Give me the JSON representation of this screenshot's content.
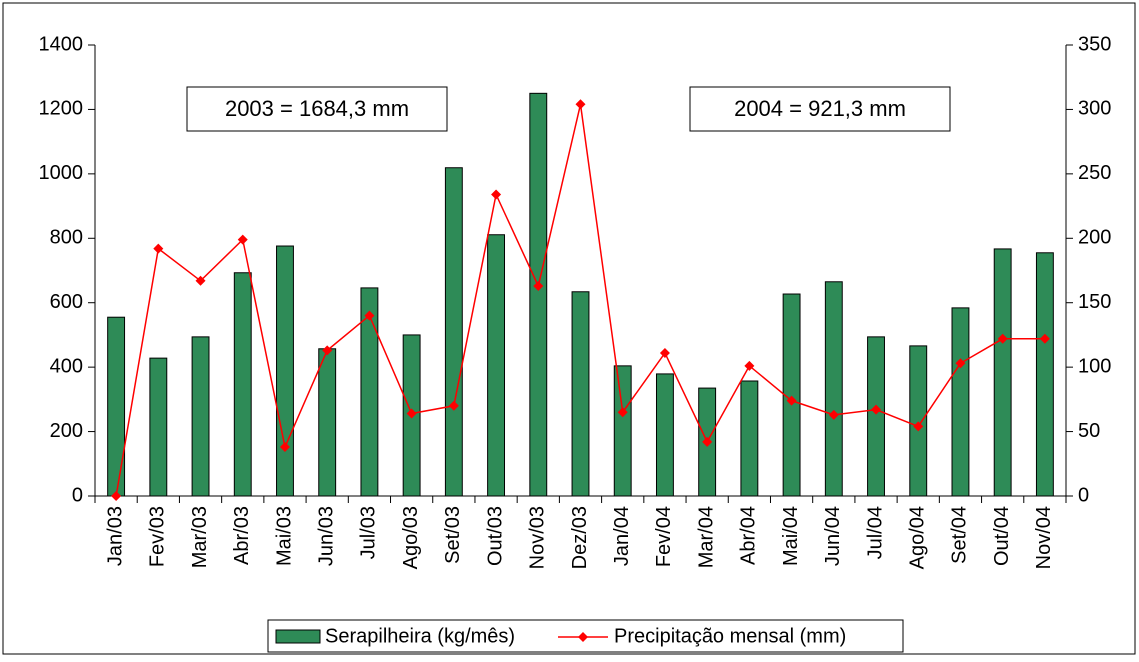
{
  "chart_data": {
    "type": "bar",
    "categories": [
      "Jan/03",
      "Fev/03",
      "Mar/03",
      "Abr/03",
      "Mai/03",
      "Jun/03",
      "Jul/03",
      "Ago/03",
      "Set/03",
      "Out/03",
      "Nov/03",
      "Dez/03",
      "Jan/04",
      "Fev/04",
      "Mar/04",
      "Abr/04",
      "Mai/04",
      "Jun/04",
      "Jul/04",
      "Ago/04",
      "Set/04",
      "Out/04",
      "Nov/04"
    ],
    "series": [
      {
        "name": "Serapilheira (kg/mês)",
        "type": "bar",
        "color": "#2e8b57",
        "values": [
          555,
          428,
          494,
          693,
          776,
          457,
          646,
          500,
          1019,
          811,
          1250,
          634,
          404,
          379,
          335,
          357,
          627,
          665,
          494,
          466,
          584,
          767,
          755
        ]
      },
      {
        "name": "Precipitação mensal (mm)",
        "type": "line",
        "axis": "y2",
        "color": "#ff0000",
        "values": [
          0,
          192,
          167,
          199,
          38,
          113,
          140,
          64,
          70,
          234,
          163,
          304,
          65,
          111,
          42,
          101,
          74,
          63,
          67,
          54,
          103,
          122,
          122
        ]
      }
    ],
    "ylim": [
      0,
      1400
    ],
    "yticks": [
      0,
      200,
      400,
      600,
      800,
      1000,
      1200,
      1400
    ],
    "y2lim": [
      0,
      350
    ],
    "y2ticks": [
      0,
      50,
      100,
      150,
      200,
      250,
      300,
      350
    ],
    "annotations": [
      "2003 = 1684,3 mm",
      "2004 = 921,3 mm"
    ],
    "legend": "bottom"
  }
}
